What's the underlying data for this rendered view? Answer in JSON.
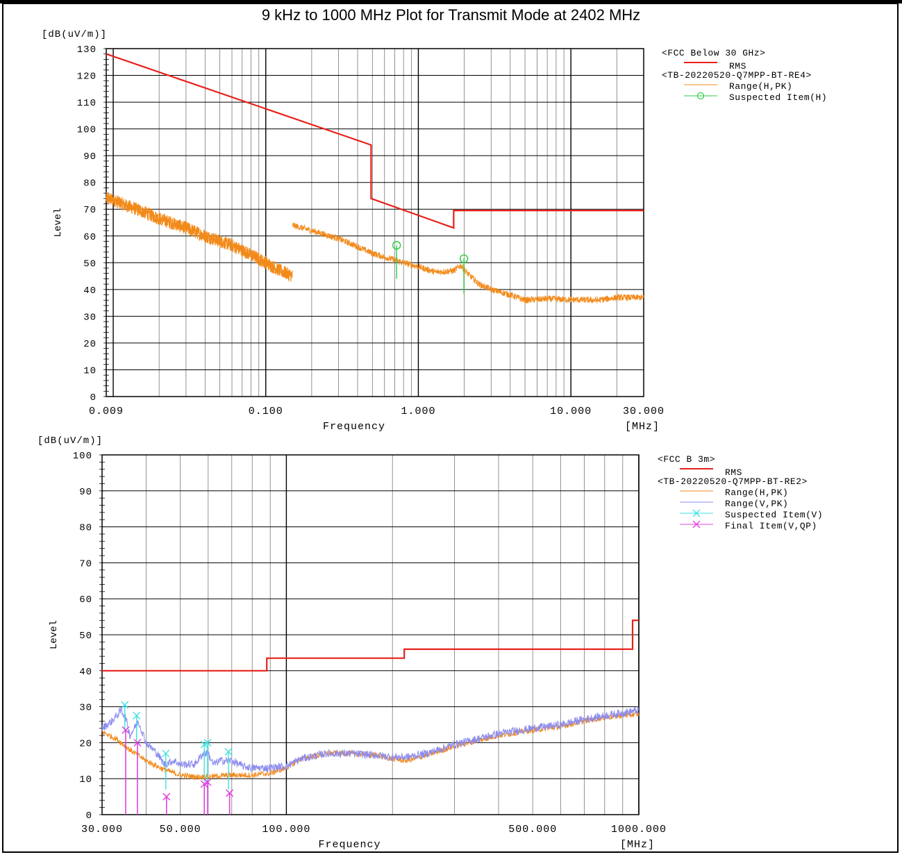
{
  "title": "9 kHz to 1000 MHz Plot for Transmit Mode at 2402 MHz",
  "colors": {
    "limit": "#e8201a",
    "range_h": "#f28a1a",
    "range_v": "#8c8cf0",
    "suspected_h": "#2ecc40",
    "suspected_v": "#3ee0e0",
    "final_v": "#e040e0",
    "grid_major": "#000000",
    "grid_minor": "#777777"
  },
  "chart_data": [
    {
      "type": "line",
      "ylabel_unit": "[dB(uV/m)]",
      "ylabel": "Level",
      "xlabel": "Frequency",
      "xunit": "[MHz]",
      "xscale": "log",
      "xlim": [
        0.009,
        30
      ],
      "ylim": [
        0,
        130
      ],
      "yticks": [
        0,
        10,
        20,
        30,
        40,
        50,
        60,
        70,
        80,
        90,
        100,
        110,
        120,
        130
      ],
      "xtick_labels": [
        {
          "x": 0.009,
          "label": "0.009"
        },
        {
          "x": 0.1,
          "label": "0.100"
        },
        {
          "x": 1,
          "label": "1.000"
        },
        {
          "x": 10,
          "label": "10.000"
        },
        {
          "x": 30,
          "label": "30.000"
        }
      ],
      "legend": {
        "position": "right",
        "entries": [
          {
            "text": "<FCC Below 30 GHz>",
            "style": "header"
          },
          {
            "text": "RMS",
            "style": "limit"
          },
          {
            "text": "<TB-20220520-Q7MPP-BT-RE4>",
            "style": "header"
          },
          {
            "text": "Range(H,PK)",
            "style": "range_h"
          },
          {
            "text": "Suspected Item(H)",
            "style": "suspected_h"
          }
        ]
      },
      "limit_line": [
        [
          0.009,
          128
        ],
        [
          0.49,
          94
        ],
        [
          0.49,
          74
        ],
        [
          1.705,
          63
        ],
        [
          1.705,
          69.5
        ],
        [
          30,
          69.5
        ]
      ],
      "series": [
        {
          "style": "range_h",
          "segments": [
            {
              "points": [
                [
                  0.009,
                  74
                ],
                [
                  0.01,
                  73.5
                ],
                [
                  0.012,
                  71.5
                ],
                [
                  0.015,
                  69.5
                ],
                [
                  0.02,
                  66.5
                ],
                [
                  0.03,
                  63
                ],
                [
                  0.04,
                  60
                ],
                [
                  0.06,
                  56.5
                ],
                [
                  0.08,
                  53
                ],
                [
                  0.1,
                  50
                ],
                [
                  0.12,
                  47.5
                ],
                [
                  0.15,
                  45
                ]
              ],
              "noise": 2.5
            },
            {
              "points": [
                [
                  0.15,
                  64
                ],
                [
                  0.2,
                  62
                ],
                [
                  0.3,
                  59
                ],
                [
                  0.4,
                  56
                ],
                [
                  0.5,
                  53.5
                ],
                [
                  0.7,
                  51
                ],
                [
                  1,
                  48.5
                ],
                [
                  1.3,
                  46.5
                ],
                [
                  1.7,
                  47
                ],
                [
                  1.9,
                  49
                ],
                [
                  2.1,
                  46
                ],
                [
                  2.5,
                  42
                ],
                [
                  3,
                  40
                ],
                [
                  4,
                  38
                ],
                [
                  5,
                  36
                ],
                [
                  7,
                  36.5
                ],
                [
                  10,
                  36.2
                ],
                [
                  15,
                  36
                ],
                [
                  20,
                  37
                ],
                [
                  30,
                  37
                ]
              ],
              "noise": 1.2
            }
          ]
        }
      ],
      "suspected": [
        {
          "x": 0.72,
          "y": 56.5,
          "y_base": 44
        },
        {
          "x": 1.99,
          "y": 51.5,
          "y_base": 38.5
        }
      ]
    },
    {
      "type": "line",
      "ylabel_unit": "[dB(uV/m)]",
      "ylabel": "Level",
      "xlabel": "Frequency",
      "xunit": "[MHz]",
      "xscale": "log",
      "xlim": [
        30,
        1000
      ],
      "ylim": [
        0,
        100
      ],
      "yticks": [
        0,
        10,
        20,
        30,
        40,
        50,
        60,
        70,
        80,
        90,
        100
      ],
      "xtick_labels": [
        {
          "x": 30,
          "label": "30.000"
        },
        {
          "x": 50,
          "label": "50.000"
        },
        {
          "x": 100,
          "label": "100.000"
        },
        {
          "x": 500,
          "label": "500.000"
        },
        {
          "x": 1000,
          "label": "1000.000"
        }
      ],
      "legend": {
        "position": "right",
        "entries": [
          {
            "text": "<FCC B  3m>",
            "style": "header"
          },
          {
            "text": "RMS",
            "style": "limit"
          },
          {
            "text": "<TB-20220520-Q7MPP-BT-RE2>",
            "style": "header"
          },
          {
            "text": "Range(H,PK)",
            "style": "range_h"
          },
          {
            "text": "Range(V,PK)",
            "style": "range_v"
          },
          {
            "text": "Suspected Item(V)",
            "style": "suspected_v"
          },
          {
            "text": "Final Item(V,QP)",
            "style": "final_v"
          }
        ]
      },
      "limit_line": [
        [
          30,
          40
        ],
        [
          88,
          40
        ],
        [
          88,
          43.5
        ],
        [
          216,
          43.5
        ],
        [
          216,
          46
        ],
        [
          960,
          46
        ],
        [
          960,
          54
        ],
        [
          1000,
          54
        ]
      ],
      "series": [
        {
          "style": "range_h",
          "segments": [
            {
              "points": [
                [
                  30,
                  23
                ],
                [
                  33,
                  21
                ],
                [
                  36,
                  18
                ],
                [
                  40,
                  15
                ],
                [
                  45,
                  12.5
                ],
                [
                  50,
                  11
                ],
                [
                  55,
                  10.5
                ],
                [
                  60,
                  10.5
                ],
                [
                  70,
                  11
                ],
                [
                  80,
                  11
                ],
                [
                  90,
                  11.5
                ],
                [
                  100,
                  13
                ],
                [
                  110,
                  15.5
                ],
                [
                  130,
                  17
                ],
                [
                  150,
                  17
                ],
                [
                  180,
                  16.5
                ],
                [
                  200,
                  15.5
                ],
                [
                  220,
                  15
                ],
                [
                  250,
                  16.5
                ],
                [
                  300,
                  19
                ],
                [
                  400,
                  22
                ],
                [
                  500,
                  23.5
                ],
                [
                  600,
                  24.5
                ],
                [
                  700,
                  26
                ],
                [
                  800,
                  27
                ],
                [
                  1000,
                  28
                ]
              ],
              "noise": 0.8
            }
          ]
        },
        {
          "style": "range_v",
          "segments": [
            {
              "points": [
                [
                  30,
                  24
                ],
                [
                  32,
                  26
                ],
                [
                  34,
                  29
                ],
                [
                  35,
                  27
                ],
                [
                  36,
                  22
                ],
                [
                  37,
                  24
                ],
                [
                  38,
                  26
                ],
                [
                  40,
                  20
                ],
                [
                  43,
                  17
                ],
                [
                  45,
                  14
                ],
                [
                  48,
                  15
                ],
                [
                  50,
                  14
                ],
                [
                  55,
                  14
                ],
                [
                  58,
                  17
                ],
                [
                  60,
                  17
                ],
                [
                  62,
                  14
                ],
                [
                  65,
                  15
                ],
                [
                  70,
                  15
                ],
                [
                  75,
                  13.5
                ],
                [
                  80,
                  13
                ],
                [
                  90,
                  13
                ],
                [
                  100,
                  13.5
                ],
                [
                  110,
                  15.5
                ],
                [
                  130,
                  17
                ],
                [
                  150,
                  17
                ],
                [
                  180,
                  16.5
                ],
                [
                  200,
                  16
                ],
                [
                  220,
                  16
                ],
                [
                  250,
                  17
                ],
                [
                  300,
                  19.5
                ],
                [
                  400,
                  22.5
                ],
                [
                  500,
                  24
                ],
                [
                  600,
                  25
                ],
                [
                  700,
                  26.5
                ],
                [
                  800,
                  27.5
                ],
                [
                  1000,
                  29
                ]
              ],
              "noise": 1.1
            }
          ]
        }
      ],
      "suspected": [
        {
          "x": 34.8,
          "y": 30.5,
          "y_base": 23
        },
        {
          "x": 37.6,
          "y": 27.5,
          "y_base": 20
        },
        {
          "x": 45.5,
          "y": 17,
          "y_base": 7
        },
        {
          "x": 58.5,
          "y": 19.5,
          "y_base": 9
        },
        {
          "x": 59.8,
          "y": 20,
          "y_base": 9
        },
        {
          "x": 68.5,
          "y": 17.5,
          "y_base": 7
        }
      ],
      "final": [
        {
          "x": 35.0,
          "y": 23.5
        },
        {
          "x": 37.8,
          "y": 20
        },
        {
          "x": 45.7,
          "y": 5
        },
        {
          "x": 58.5,
          "y": 8.5
        },
        {
          "x": 59.8,
          "y": 9
        },
        {
          "x": 69.0,
          "y": 6
        }
      ]
    }
  ]
}
